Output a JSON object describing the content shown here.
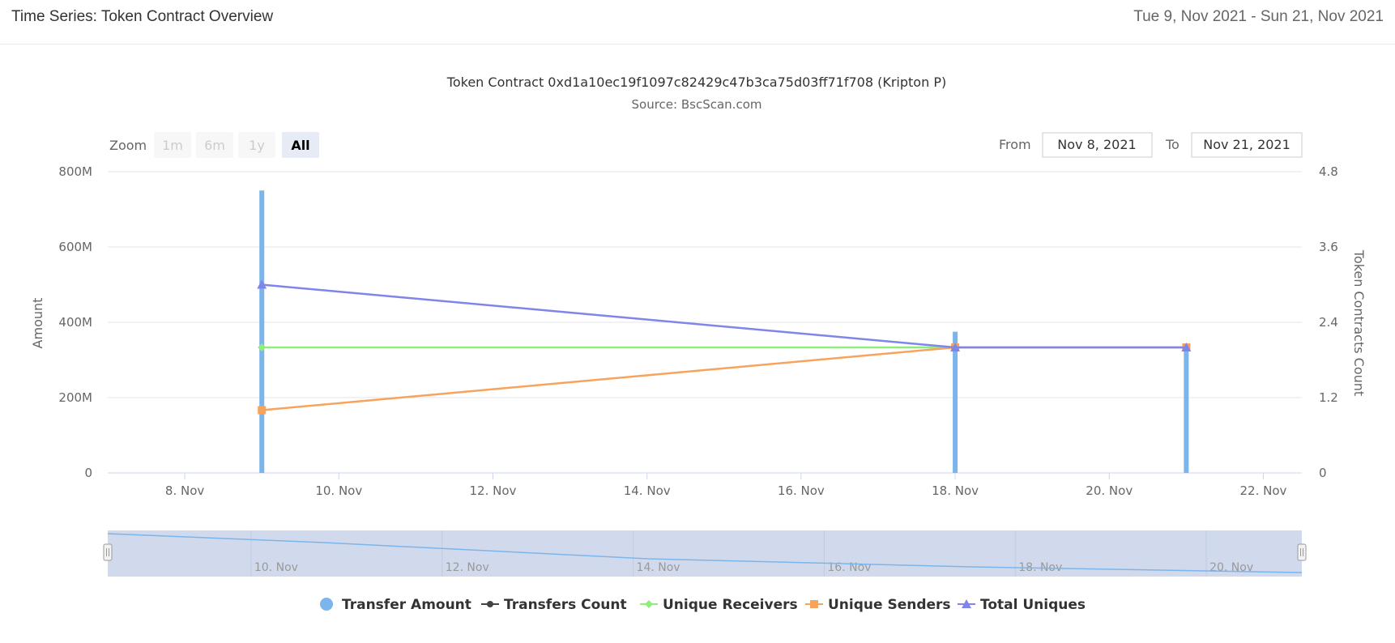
{
  "header": {
    "title": "Time Series: Token Contract Overview",
    "date_range": "Tue 9, Nov 2021 - Sun 21, Nov 2021"
  },
  "range_selector": {
    "zoom_label": "Zoom",
    "buttons": [
      "1m",
      "6m",
      "1y",
      "All"
    ],
    "active": "All",
    "from_label": "From",
    "from_value": "Nov 8, 2021",
    "to_label": "To",
    "to_value": "Nov 21, 2021"
  },
  "chart_data": {
    "type": "line",
    "title": "Token Contract 0xd1a10ec19f1097c82429c47b3ca75d03ff71f708 (Kripton P)",
    "subtitle": "Source: BscScan.com",
    "ylabel": "Amount",
    "y2label": "Token Contracts Count",
    "ylim": [
      0,
      800
    ],
    "y2lim": [
      0,
      4.8
    ],
    "y_ticks": [
      "0",
      "200M",
      "400M",
      "600M",
      "800M"
    ],
    "y2_ticks": [
      "0",
      "1.2",
      "2.4",
      "3.6",
      "4.8"
    ],
    "x_ticks": [
      "8. Nov",
      "10. Nov",
      "12. Nov",
      "14. Nov",
      "16. Nov",
      "18. Nov",
      "20. Nov",
      "22. Nov"
    ],
    "navigator_ticks": [
      "10. Nov",
      "12. Nov",
      "14. Nov",
      "16. Nov",
      "18. Nov",
      "20. Nov"
    ],
    "grid": true,
    "legend_position": "bottom-center",
    "x": [
      "2021-11-09",
      "2021-11-18",
      "2021-11-21"
    ],
    "series": [
      {
        "name": "Transfer Amount",
        "type": "column",
        "axis": "left",
        "color": "#7cb5ec",
        "marker": "circle",
        "values": [
          750,
          375,
          330
        ]
      },
      {
        "name": "Transfers Count",
        "type": "line",
        "axis": "right",
        "color": "#434348",
        "marker": "circle",
        "values": [
          null,
          null,
          null
        ]
      },
      {
        "name": "Unique Receivers",
        "type": "line",
        "axis": "right",
        "color": "#90ed7d",
        "marker": "diamond",
        "values": [
          2,
          2,
          2
        ]
      },
      {
        "name": "Unique Senders",
        "type": "line",
        "axis": "right",
        "color": "#f7a35c",
        "marker": "square",
        "values": [
          1,
          2,
          2
        ]
      },
      {
        "name": "Total Uniques",
        "type": "line",
        "axis": "right",
        "color": "#8085e9",
        "marker": "triangle",
        "values": [
          3,
          2,
          2
        ]
      }
    ]
  }
}
